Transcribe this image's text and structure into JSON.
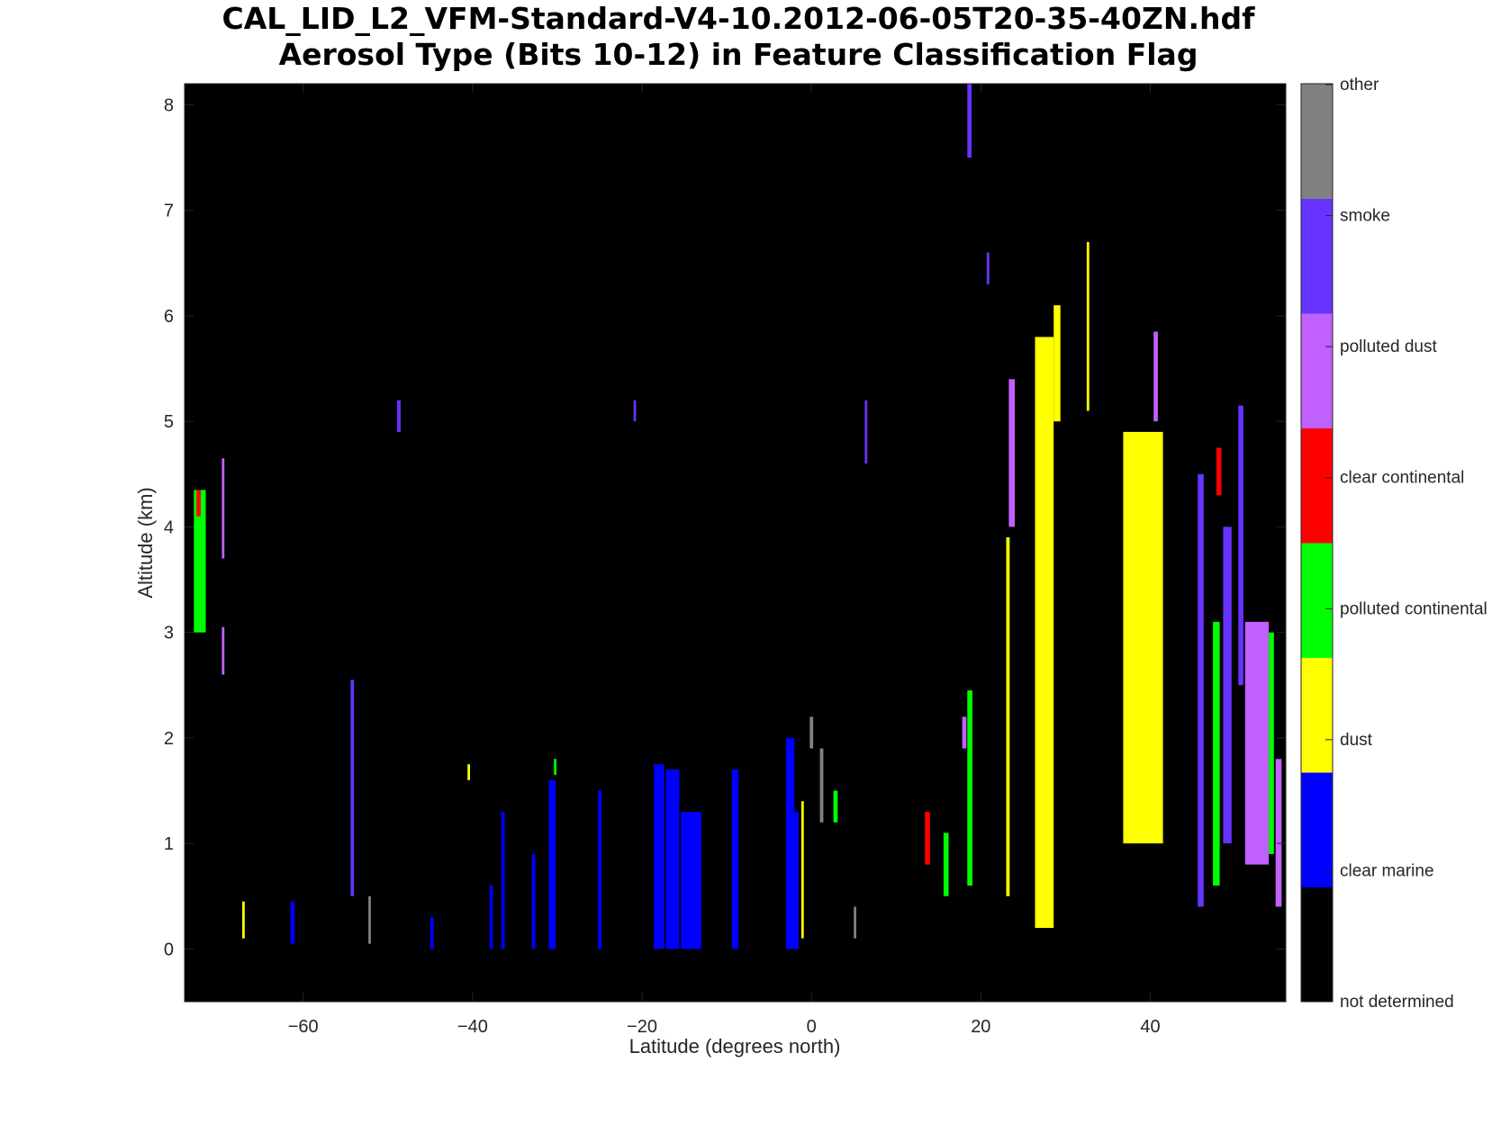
{
  "chart_data": {
    "type": "heatmap",
    "title_line1": "CAL_LID_L2_VFM-Standard-V4-10.2012-06-05T20-35-40ZN.hdf",
    "title_line2": "Aerosol Type  (Bits 10-12) in Feature Classification Flag",
    "xlabel": "Latitude (degrees north)",
    "ylabel": "Altitude (km)",
    "xlim": [
      -74,
      56
    ],
    "ylim": [
      -0.5,
      8.2
    ],
    "xticks": [
      -60,
      -40,
      -20,
      0,
      20,
      40
    ],
    "xtick_labels": [
      "−60",
      "−40",
      "−20",
      "0",
      "20",
      "40"
    ],
    "yticks": [
      0,
      1,
      2,
      3,
      4,
      5,
      6,
      7,
      8
    ],
    "ytick_labels": [
      "0",
      "1",
      "2",
      "3",
      "4",
      "5",
      "6",
      "7",
      "8"
    ],
    "background": "not determined",
    "colorbar": [
      {
        "label": "not determined",
        "color": "#000000"
      },
      {
        "label": "clear marine",
        "color": "#0000ff"
      },
      {
        "label": "dust",
        "color": "#ffff00"
      },
      {
        "label": "polluted continental",
        "color": "#00ff00"
      },
      {
        "label": "clear continental",
        "color": "#ff0000"
      },
      {
        "label": "polluted dust",
        "color": "#c060ff"
      },
      {
        "label": "smoke",
        "color": "#6633ff"
      },
      {
        "label": "other",
        "color": "#808080"
      }
    ],
    "features": [
      {
        "type": "polluted continental",
        "lat": [
          -72.9,
          -71.5
        ],
        "alt": [
          3.0,
          4.35
        ]
      },
      {
        "type": "clear continental",
        "lat": [
          -72.6,
          -72.1
        ],
        "alt": [
          4.1,
          4.35
        ]
      },
      {
        "type": "polluted dust",
        "lat": [
          -69.6,
          -69.3
        ],
        "alt": [
          3.7,
          4.65
        ]
      },
      {
        "type": "polluted dust",
        "lat": [
          -69.6,
          -69.3
        ],
        "alt": [
          2.6,
          3.05
        ]
      },
      {
        "type": "dust",
        "lat": [
          -67.2,
          -66.9
        ],
        "alt": [
          0.1,
          0.45
        ]
      },
      {
        "type": "clear marine",
        "lat": [
          -61.5,
          -61.0
        ],
        "alt": [
          0.05,
          0.45
        ]
      },
      {
        "type": "smoke",
        "lat": [
          -54.4,
          -54.0
        ],
        "alt": [
          0.5,
          2.55
        ]
      },
      {
        "type": "other",
        "lat": [
          -52.3,
          -52.0
        ],
        "alt": [
          0.05,
          0.5
        ]
      },
      {
        "type": "smoke",
        "lat": [
          -48.9,
          -48.5
        ],
        "alt": [
          4.9,
          5.2
        ]
      },
      {
        "type": "clear marine",
        "lat": [
          -45.0,
          -44.6
        ],
        "alt": [
          0.0,
          0.3
        ]
      },
      {
        "type": "dust",
        "lat": [
          -40.6,
          -40.3
        ],
        "alt": [
          1.6,
          1.75
        ]
      },
      {
        "type": "clear marine",
        "lat": [
          -38.0,
          -37.6
        ],
        "alt": [
          0.0,
          0.6
        ]
      },
      {
        "type": "clear marine",
        "lat": [
          -36.6,
          -36.2
        ],
        "alt": [
          0.0,
          1.3
        ]
      },
      {
        "type": "clear marine",
        "lat": [
          -33.0,
          -32.6
        ],
        "alt": [
          0.0,
          0.9
        ]
      },
      {
        "type": "clear marine",
        "lat": [
          -31.0,
          -30.2
        ],
        "alt": [
          0.0,
          1.6
        ]
      },
      {
        "type": "polluted continental",
        "lat": [
          -30.4,
          -30.1
        ],
        "alt": [
          1.65,
          1.8
        ]
      },
      {
        "type": "clear marine",
        "lat": [
          -25.2,
          -24.8
        ],
        "alt": [
          0.0,
          1.5
        ]
      },
      {
        "type": "smoke",
        "lat": [
          -21.0,
          -20.7
        ],
        "alt": [
          5.0,
          5.2
        ]
      },
      {
        "type": "clear marine",
        "lat": [
          -18.6,
          -17.4
        ],
        "alt": [
          0.0,
          1.75
        ]
      },
      {
        "type": "clear marine",
        "lat": [
          -17.2,
          -15.6
        ],
        "alt": [
          0.0,
          1.7
        ]
      },
      {
        "type": "clear marine",
        "lat": [
          -15.4,
          -13.0
        ],
        "alt": [
          0.0,
          1.3
        ]
      },
      {
        "type": "clear marine",
        "lat": [
          -9.4,
          -8.6
        ],
        "alt": [
          0.0,
          1.7
        ]
      },
      {
        "type": "clear marine",
        "lat": [
          -3.0,
          -2.0
        ],
        "alt": [
          0.0,
          2.0
        ]
      },
      {
        "type": "clear marine",
        "lat": [
          -2.0,
          -1.5
        ],
        "alt": [
          0.0,
          1.3
        ]
      },
      {
        "type": "dust",
        "lat": [
          -1.2,
          -0.9
        ],
        "alt": [
          0.1,
          1.4
        ]
      },
      {
        "type": "other",
        "lat": [
          -0.2,
          0.2
        ],
        "alt": [
          1.9,
          2.2
        ]
      },
      {
        "type": "other",
        "lat": [
          1.0,
          1.4
        ],
        "alt": [
          1.2,
          1.9
        ]
      },
      {
        "type": "polluted continental",
        "lat": [
          2.6,
          3.1
        ],
        "alt": [
          1.2,
          1.5
        ]
      },
      {
        "type": "other",
        "lat": [
          5.0,
          5.3
        ],
        "alt": [
          0.1,
          0.4
        ]
      },
      {
        "type": "smoke",
        "lat": [
          6.3,
          6.6
        ],
        "alt": [
          4.6,
          5.2
        ]
      },
      {
        "type": "clear continental",
        "lat": [
          13.4,
          14.0
        ],
        "alt": [
          0.8,
          1.3
        ]
      },
      {
        "type": "polluted continental",
        "lat": [
          15.6,
          16.2
        ],
        "alt": [
          0.5,
          1.1
        ]
      },
      {
        "type": "polluted dust",
        "lat": [
          17.8,
          18.3
        ],
        "alt": [
          1.9,
          2.2
        ]
      },
      {
        "type": "polluted continental",
        "lat": [
          18.4,
          19.0
        ],
        "alt": [
          0.6,
          2.45
        ]
      },
      {
        "type": "smoke",
        "lat": [
          18.4,
          18.9
        ],
        "alt": [
          7.5,
          8.2
        ]
      },
      {
        "type": "smoke",
        "lat": [
          20.7,
          21.0
        ],
        "alt": [
          6.3,
          6.6
        ]
      },
      {
        "type": "polluted dust",
        "lat": [
          23.3,
          24.0
        ],
        "alt": [
          4.0,
          5.4
        ]
      },
      {
        "type": "dust",
        "lat": [
          23.0,
          23.4
        ],
        "alt": [
          0.5,
          3.9
        ]
      },
      {
        "type": "dust",
        "lat": [
          26.4,
          28.6
        ],
        "alt": [
          0.2,
          5.8
        ]
      },
      {
        "type": "dust",
        "lat": [
          28.6,
          29.4
        ],
        "alt": [
          5.0,
          6.1
        ]
      },
      {
        "type": "dust",
        "lat": [
          32.5,
          32.8
        ],
        "alt": [
          5.1,
          6.7
        ]
      },
      {
        "type": "dust",
        "lat": [
          36.8,
          41.5
        ],
        "alt": [
          1.0,
          4.9
        ]
      },
      {
        "type": "polluted dust",
        "lat": [
          40.4,
          40.9
        ],
        "alt": [
          5.0,
          5.85
        ]
      },
      {
        "type": "smoke",
        "lat": [
          45.6,
          46.3
        ],
        "alt": [
          0.4,
          4.5
        ]
      },
      {
        "type": "polluted continental",
        "lat": [
          47.4,
          48.2
        ],
        "alt": [
          0.6,
          3.1
        ]
      },
      {
        "type": "clear continental",
        "lat": [
          47.8,
          48.4
        ],
        "alt": [
          4.3,
          4.75
        ]
      },
      {
        "type": "smoke",
        "lat": [
          48.6,
          49.6
        ],
        "alt": [
          1.0,
          4.0
        ]
      },
      {
        "type": "smoke",
        "lat": [
          50.4,
          51.0
        ],
        "alt": [
          2.5,
          5.15
        ]
      },
      {
        "type": "polluted dust",
        "lat": [
          51.2,
          54.0
        ],
        "alt": [
          0.8,
          3.1
        ]
      },
      {
        "type": "polluted continental",
        "lat": [
          54.0,
          54.6
        ],
        "alt": [
          0.9,
          3.0
        ]
      },
      {
        "type": "polluted dust",
        "lat": [
          54.8,
          55.5
        ],
        "alt": [
          0.4,
          1.8
        ]
      }
    ]
  }
}
